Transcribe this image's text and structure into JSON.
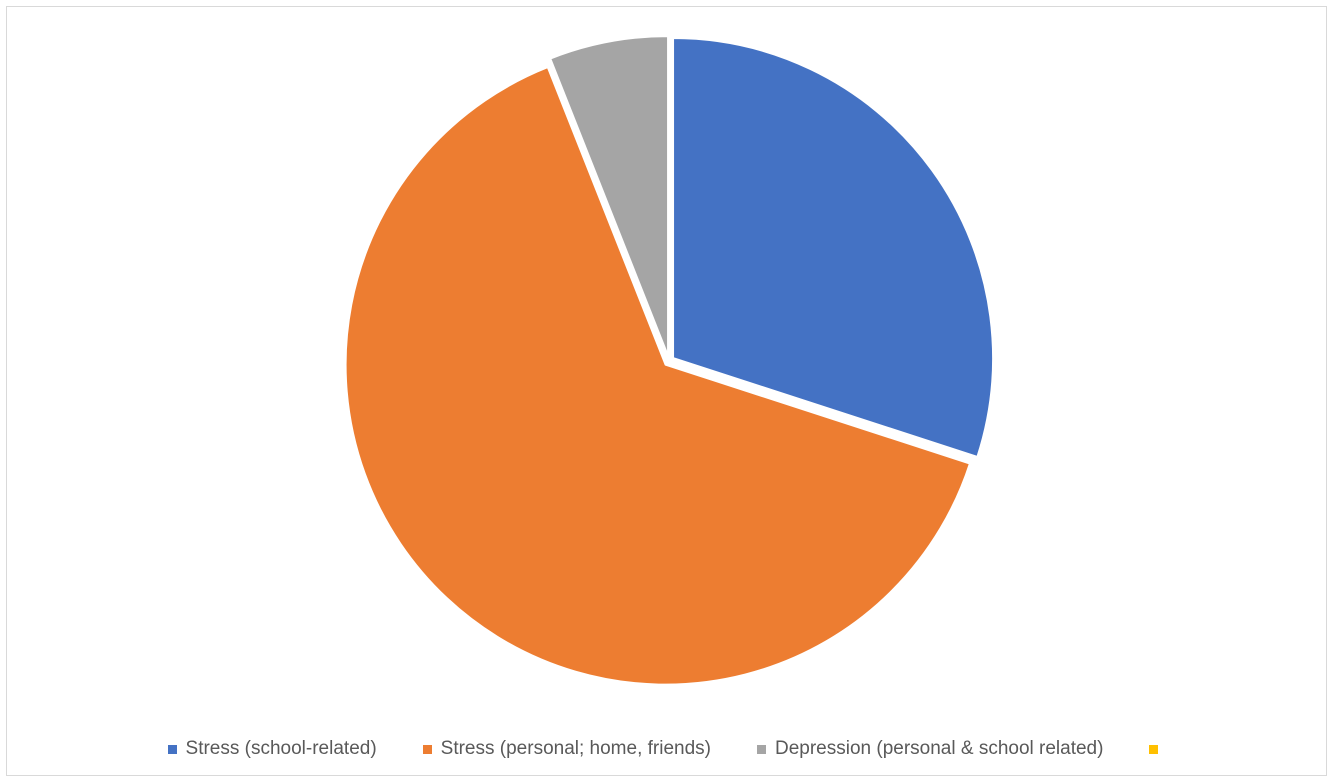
{
  "chart_data": {
    "type": "pie",
    "title": "",
    "start_angle_deg": 0,
    "direction": "clockwise",
    "slice_separator_color": "#ffffff",
    "legend_position": "bottom",
    "series": [
      {
        "name": "",
        "slices": [
          {
            "label": "Stress (school-related)",
            "value": 30,
            "color": "#4472C4"
          },
          {
            "label": "Stress (personal; home, friends)",
            "value": 64,
            "color": "#ED7D31"
          },
          {
            "label": "Depression (personal & school related)",
            "value": 6,
            "color": "#A5A5A5"
          },
          {
            "label": "",
            "value": 0,
            "color": "#FFC000"
          }
        ]
      }
    ]
  }
}
